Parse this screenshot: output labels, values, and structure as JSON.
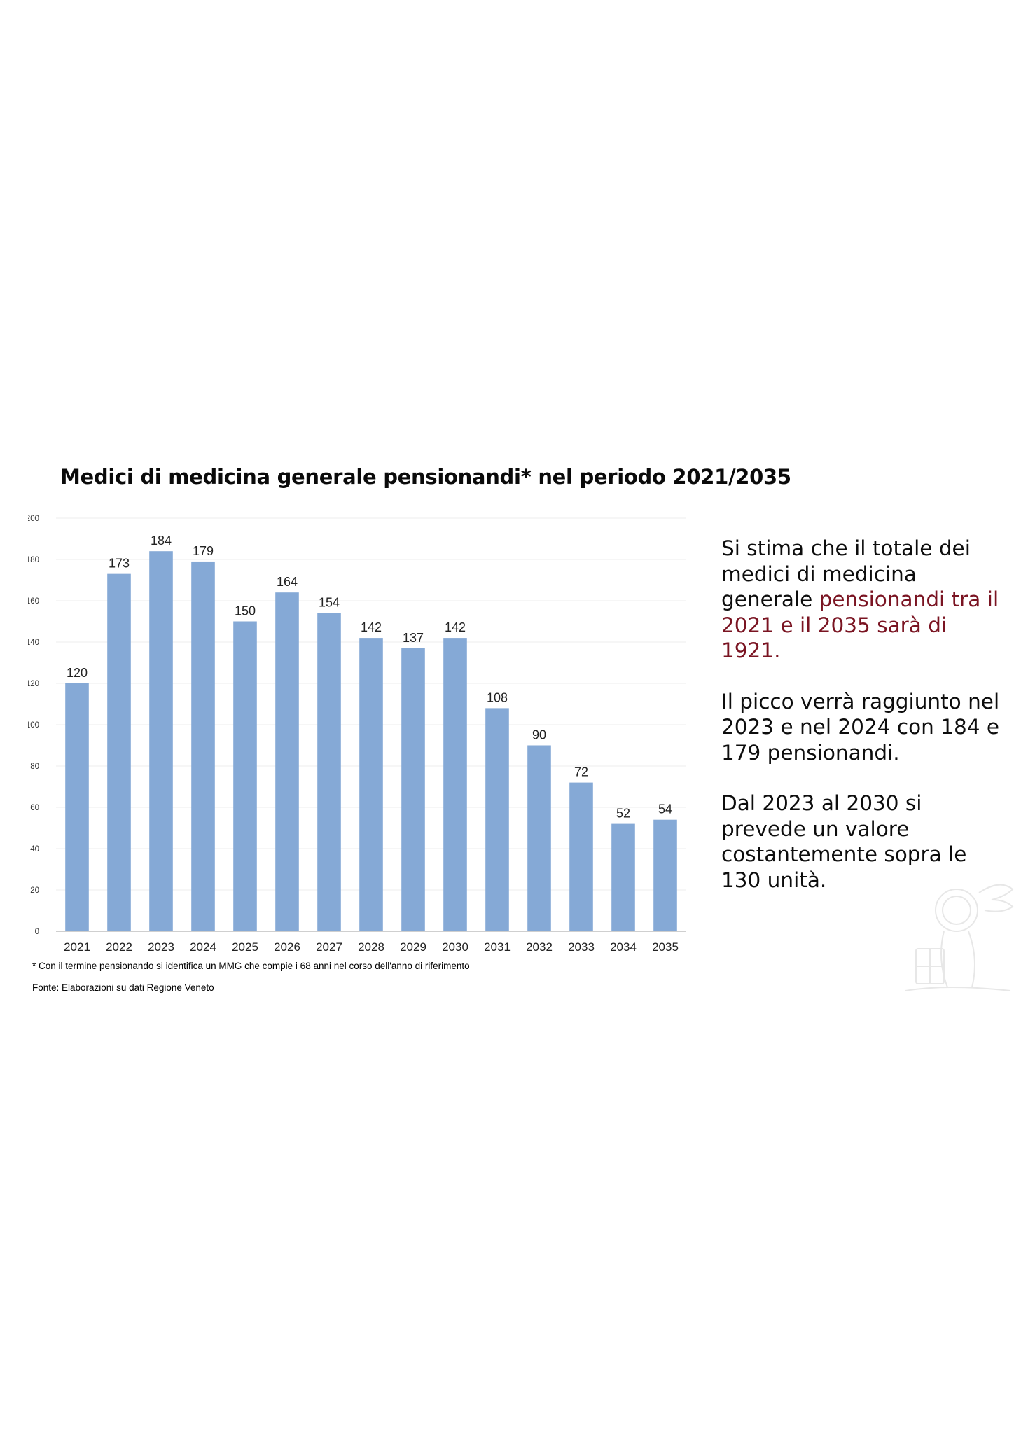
{
  "page": {
    "title": "Medici di medicina generale pensionandi* nel periodo 2021/2035",
    "footnote": "* Con il termine pensionando si identifica un MMG che compie i 68 anni nel corso dell'anno di riferimento",
    "source": "Fonte: Elaborazioni su dati Regione Veneto",
    "highlight_color": "#7a1422",
    "bar_color": "#85a9d6"
  },
  "side": {
    "p1_pre": "Si stima che il totale dei medici di medicina generale ",
    "p1_highlight": "pensionandi tra il 2021 e il 2035 sarà di 1921.",
    "p2": "Il picco verrà raggiunto nel 2023 e nel 2024 con 184 e 179 pensionandi.",
    "p3": "Dal 2023 al 2030 si prevede un valore costantemente sopra le 130 unità."
  },
  "chart_data": {
    "type": "bar",
    "title": "Medici di medicina generale pensionandi* nel periodo 2021/2035",
    "xlabel": "",
    "ylabel": "",
    "categories": [
      "2021",
      "2022",
      "2023",
      "2024",
      "2025",
      "2026",
      "2027",
      "2028",
      "2029",
      "2030",
      "2031",
      "2032",
      "2033",
      "2034",
      "2035"
    ],
    "values": [
      120,
      173,
      184,
      179,
      150,
      164,
      154,
      142,
      137,
      142,
      108,
      90,
      72,
      52,
      54
    ],
    "ylim": [
      0,
      200
    ],
    "yticks": [
      0,
      20,
      40,
      60,
      80,
      100,
      120,
      140,
      160,
      180,
      200
    ],
    "grid": true,
    "data_labels": true,
    "legend": "none"
  }
}
